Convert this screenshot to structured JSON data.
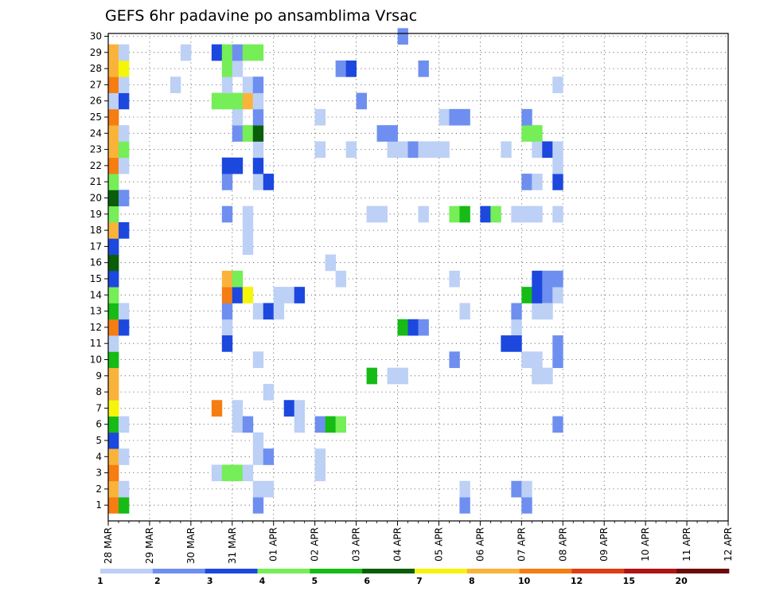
{
  "chart_data": {
    "type": "heatmap",
    "title": "GEFS 6hr padavine po ansamblima Vrsac",
    "xlabel": "",
    "ylabel": "",
    "y_members": [
      "1",
      "2",
      "3",
      "4",
      "5",
      "6",
      "7",
      "8",
      "9",
      "10",
      "11",
      "12",
      "13",
      "14",
      "15",
      "16",
      "17",
      "18",
      "19",
      "20",
      "21",
      "22",
      "23",
      "24",
      "25",
      "26",
      "27",
      "28",
      "29",
      "30"
    ],
    "x_ticks": [
      "28 MAR",
      "29 MAR",
      "30 MAR",
      "31 MAR",
      "01 APR",
      "02 APR",
      "03 APR",
      "04 APR",
      "05 APR",
      "06 APR",
      "07 APR",
      "08 APR",
      "09 APR",
      "10 APR",
      "11 APR",
      "12 APR"
    ],
    "x_steps_per_day": 4,
    "x_range_steps": [
      0,
      60
    ],
    "grid": true,
    "legend": {
      "placement": "bottom",
      "colors": [
        "#bdd0f5",
        "#6e8ff0",
        "#1c48de",
        "#75ee57",
        "#16bb16",
        "#0a5e0a",
        "#f5f50a",
        "#f9b33b",
        "#f57d12",
        "#de3c12",
        "#b11212",
        "#6b0a0a"
      ],
      "labels": [
        "1",
        "2",
        "3",
        "4",
        "5",
        "6",
        "7",
        "8",
        "10",
        "12",
        "15",
        "20"
      ]
    },
    "cells": [
      [
        0,
        1,
        9
      ],
      [
        0,
        2,
        8
      ],
      [
        0,
        3,
        9
      ],
      [
        0,
        4,
        8
      ],
      [
        0,
        5,
        3
      ],
      [
        0,
        6,
        5
      ],
      [
        0,
        7,
        7
      ],
      [
        0,
        8,
        8
      ],
      [
        0,
        9,
        8
      ],
      [
        0,
        10,
        5
      ],
      [
        0,
        11,
        1
      ],
      [
        0,
        12,
        9
      ],
      [
        0,
        13,
        5
      ],
      [
        0,
        14,
        4
      ],
      [
        0,
        15,
        3
      ],
      [
        0,
        16,
        6
      ],
      [
        0,
        17,
        3
      ],
      [
        0,
        18,
        8
      ],
      [
        0,
        19,
        4
      ],
      [
        0,
        20,
        6
      ],
      [
        0,
        21,
        4
      ],
      [
        0,
        22,
        9
      ],
      [
        0,
        23,
        8
      ],
      [
        0,
        24,
        8
      ],
      [
        0,
        25,
        9
      ],
      [
        0,
        26,
        1
      ],
      [
        0,
        27,
        9
      ],
      [
        0,
        28,
        8
      ],
      [
        0,
        29,
        8
      ],
      [
        1,
        1,
        5
      ],
      [
        1,
        2,
        1
      ],
      [
        1,
        4,
        1
      ],
      [
        1,
        6,
        1
      ],
      [
        1,
        12,
        3
      ],
      [
        1,
        13,
        1
      ],
      [
        1,
        18,
        3
      ],
      [
        1,
        20,
        2
      ],
      [
        1,
        22,
        1
      ],
      [
        1,
        23,
        4
      ],
      [
        1,
        24,
        1
      ],
      [
        1,
        26,
        3
      ],
      [
        1,
        27,
        1
      ],
      [
        1,
        28,
        7
      ],
      [
        1,
        29,
        1
      ],
      [
        7,
        29,
        1
      ],
      [
        6,
        27,
        1
      ],
      [
        10,
        3,
        1
      ],
      [
        10,
        7,
        9
      ],
      [
        10,
        29,
        3
      ],
      [
        10,
        26,
        4
      ],
      [
        11,
        3,
        4
      ],
      [
        11,
        12,
        1
      ],
      [
        11,
        11,
        3
      ],
      [
        11,
        13,
        2
      ],
      [
        11,
        14,
        9
      ],
      [
        11,
        15,
        8
      ],
      [
        11,
        19,
        2
      ],
      [
        11,
        21,
        2
      ],
      [
        11,
        22,
        3
      ],
      [
        11,
        26,
        4
      ],
      [
        11,
        27,
        1
      ],
      [
        11,
        28,
        4
      ],
      [
        11,
        29,
        4
      ],
      [
        12,
        3,
        4
      ],
      [
        12,
        6,
        1
      ],
      [
        12,
        7,
        1
      ],
      [
        12,
        14,
        3
      ],
      [
        12,
        15,
        4
      ],
      [
        12,
        22,
        3
      ],
      [
        12,
        24,
        2
      ],
      [
        12,
        25,
        1
      ],
      [
        12,
        26,
        4
      ],
      [
        12,
        28,
        1
      ],
      [
        12,
        29,
        2
      ],
      [
        13,
        3,
        1
      ],
      [
        13,
        6,
        2
      ],
      [
        13,
        14,
        7
      ],
      [
        13,
        17,
        1
      ],
      [
        13,
        18,
        1
      ],
      [
        13,
        19,
        1
      ],
      [
        13,
        24,
        4
      ],
      [
        13,
        26,
        8
      ],
      [
        13,
        27,
        1
      ],
      [
        13,
        29,
        4
      ],
      [
        14,
        1,
        2
      ],
      [
        14,
        2,
        1
      ],
      [
        14,
        4,
        1
      ],
      [
        14,
        5,
        1
      ],
      [
        14,
        10,
        1
      ],
      [
        14,
        13,
        1
      ],
      [
        14,
        21,
        1
      ],
      [
        14,
        22,
        3
      ],
      [
        14,
        23,
        1
      ],
      [
        14,
        24,
        6
      ],
      [
        14,
        25,
        2
      ],
      [
        14,
        26,
        1
      ],
      [
        14,
        27,
        2
      ],
      [
        14,
        29,
        4
      ],
      [
        15,
        2,
        1
      ],
      [
        15,
        4,
        2
      ],
      [
        15,
        8,
        1
      ],
      [
        15,
        13,
        3
      ],
      [
        15,
        21,
        3
      ],
      [
        16,
        13,
        1
      ],
      [
        16,
        14,
        1
      ],
      [
        17,
        7,
        3
      ],
      [
        17,
        14,
        1
      ],
      [
        18,
        6,
        1
      ],
      [
        18,
        7,
        1
      ],
      [
        18,
        14,
        3
      ],
      [
        20,
        3,
        1
      ],
      [
        20,
        4,
        1
      ],
      [
        20,
        6,
        2
      ],
      [
        20,
        23,
        1
      ],
      [
        20,
        25,
        1
      ],
      [
        21,
        6,
        5
      ],
      [
        21,
        16,
        1
      ],
      [
        22,
        6,
        4
      ],
      [
        22,
        15,
        1
      ],
      [
        22,
        28,
        2
      ],
      [
        23,
        23,
        1
      ],
      [
        23,
        28,
        3
      ],
      [
        24,
        26,
        2
      ],
      [
        25,
        19,
        1
      ],
      [
        25,
        9,
        5
      ],
      [
        26,
        19,
        1
      ],
      [
        26,
        24,
        2
      ],
      [
        27,
        9,
        1
      ],
      [
        27,
        23,
        1
      ],
      [
        27,
        24,
        2
      ],
      [
        28,
        9,
        1
      ],
      [
        28,
        12,
        5
      ],
      [
        28,
        23,
        1
      ],
      [
        28,
        30,
        2
      ],
      [
        29,
        12,
        3
      ],
      [
        29,
        23,
        2
      ],
      [
        30,
        12,
        2
      ],
      [
        30,
        19,
        1
      ],
      [
        30,
        23,
        1
      ],
      [
        30,
        28,
        2
      ],
      [
        31,
        23,
        1
      ],
      [
        32,
        23,
        1
      ],
      [
        32,
        25,
        1
      ],
      [
        33,
        10,
        2
      ],
      [
        33,
        15,
        1
      ],
      [
        33,
        25,
        2
      ],
      [
        33,
        19,
        4
      ],
      [
        34,
        1,
        2
      ],
      [
        34,
        2,
        1
      ],
      [
        34,
        13,
        1
      ],
      [
        34,
        19,
        5
      ],
      [
        34,
        25,
        2
      ],
      [
        36,
        19,
        3
      ],
      [
        37,
        19,
        4
      ],
      [
        38,
        11,
        3
      ],
      [
        38,
        23,
        1
      ],
      [
        39,
        2,
        2
      ],
      [
        39,
        12,
        1
      ],
      [
        39,
        13,
        2
      ],
      [
        39,
        19,
        1
      ],
      [
        39,
        11,
        3
      ],
      [
        40,
        1,
        2
      ],
      [
        40,
        2,
        1
      ],
      [
        40,
        10,
        1
      ],
      [
        40,
        14,
        5
      ],
      [
        40,
        19,
        1
      ],
      [
        40,
        21,
        2
      ],
      [
        40,
        24,
        4
      ],
      [
        40,
        25,
        2
      ],
      [
        41,
        9,
        7
      ],
      [
        41,
        10,
        1
      ],
      [
        41,
        9,
        1
      ],
      [
        41,
        13,
        1
      ],
      [
        41,
        14,
        3
      ],
      [
        41,
        15,
        3
      ],
      [
        41,
        19,
        1
      ],
      [
        41,
        23,
        1
      ],
      [
        41,
        24,
        4
      ],
      [
        41,
        21,
        1
      ],
      [
        42,
        9,
        1
      ],
      [
        42,
        14,
        2
      ],
      [
        42,
        15,
        2
      ],
      [
        42,
        13,
        1
      ],
      [
        42,
        23,
        3
      ],
      [
        43,
        6,
        2
      ],
      [
        43,
        10,
        2
      ],
      [
        43,
        11,
        2
      ],
      [
        43,
        14,
        1
      ],
      [
        43,
        15,
        2
      ],
      [
        43,
        19,
        1
      ],
      [
        43,
        21,
        3
      ],
      [
        43,
        22,
        1
      ],
      [
        43,
        23,
        1
      ],
      [
        43,
        27,
        1
      ]
    ]
  }
}
